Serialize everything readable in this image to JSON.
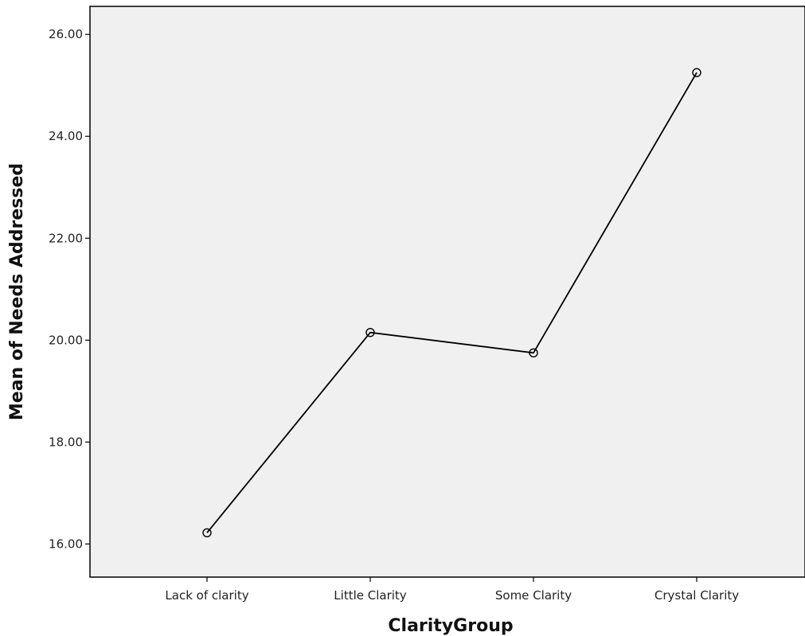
{
  "chart_data": {
    "type": "line",
    "title": "",
    "xlabel": "ClarityGroup",
    "ylabel": "Mean of Needs Addressed",
    "categories": [
      "Lack of clarity",
      "Little Clarity",
      "Some Clarity",
      "Crystal Clarity"
    ],
    "values": [
      16.22,
      20.15,
      19.75,
      25.25
    ],
    "ylim": [
      15.35,
      26.55
    ],
    "yticks": [
      16.0,
      18.0,
      20.0,
      22.0,
      24.0,
      26.0
    ],
    "ytick_labels": [
      "16.00",
      "18.00",
      "20.00",
      "22.00",
      "24.00",
      "26.00"
    ],
    "grid": false,
    "legend": "none",
    "colors": {
      "plot_background": "#f0f0f0",
      "line": "#000000",
      "frame": "#000000"
    }
  }
}
